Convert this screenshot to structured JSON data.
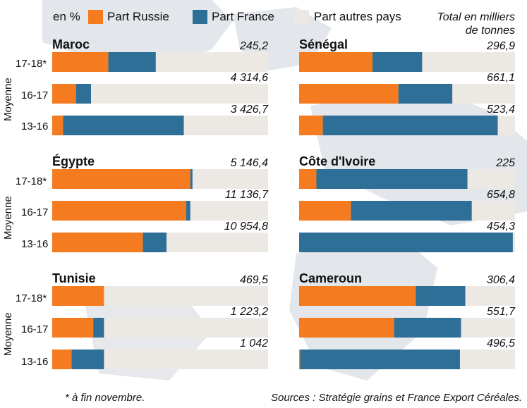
{
  "colors": {
    "russie": "#f47b20",
    "france": "#2d6f97",
    "autres": "#ece8e3",
    "map": "#dcdfe3",
    "text": "#111111"
  },
  "legend": {
    "unit": "en %",
    "russie": "Part Russie",
    "france": "Part France",
    "autres": "Part autres pays",
    "total_line1": "Total en milliers",
    "total_line2": "de tonnes"
  },
  "row_labels": [
    "17-18*",
    "16-17",
    "13-16"
  ],
  "moyenne_label": "Moyenne",
  "footnote": "* à fin novembre.",
  "source": "Sources : Stratégie grains et France Export Céréales.",
  "chart_data": {
    "type": "bar",
    "stacked": true,
    "orientation": "horizontal",
    "unit": "%",
    "categories": [
      "17-18*",
      "16-17",
      "13-16"
    ],
    "panels": [
      {
        "country": "Maroc",
        "russie": [
          26,
          11,
          5
        ],
        "france": [
          22,
          7,
          56
        ],
        "totals": [
          "245,2",
          "4 314,6",
          "3 426,7"
        ]
      },
      {
        "country": "Sénégal",
        "russie": [
          34,
          46,
          11
        ],
        "france": [
          23,
          25,
          81
        ],
        "totals": [
          "296,9",
          "661,1",
          "523,4"
        ]
      },
      {
        "country": "Égypte",
        "russie": [
          64,
          62,
          42
        ],
        "france": [
          1,
          2,
          11
        ],
        "totals": [
          "5 146,4",
          "11 136,7",
          "10 954,8"
        ]
      },
      {
        "country": "Côte d'Ivoire",
        "russie": [
          8,
          24,
          0
        ],
        "france": [
          70,
          56,
          99
        ],
        "totals": [
          "225",
          "654,8",
          "454,3"
        ]
      },
      {
        "country": "Tunisie",
        "russie": [
          24,
          19,
          9
        ],
        "france": [
          0,
          5,
          15
        ],
        "totals": [
          "469,5",
          "1 223,2",
          "1 042"
        ]
      },
      {
        "country": "Cameroun",
        "russie": [
          54,
          44,
          0.5
        ],
        "france": [
          23,
          31,
          74
        ],
        "totals": [
          "306,4",
          "551,7",
          "496,5"
        ]
      }
    ]
  }
}
